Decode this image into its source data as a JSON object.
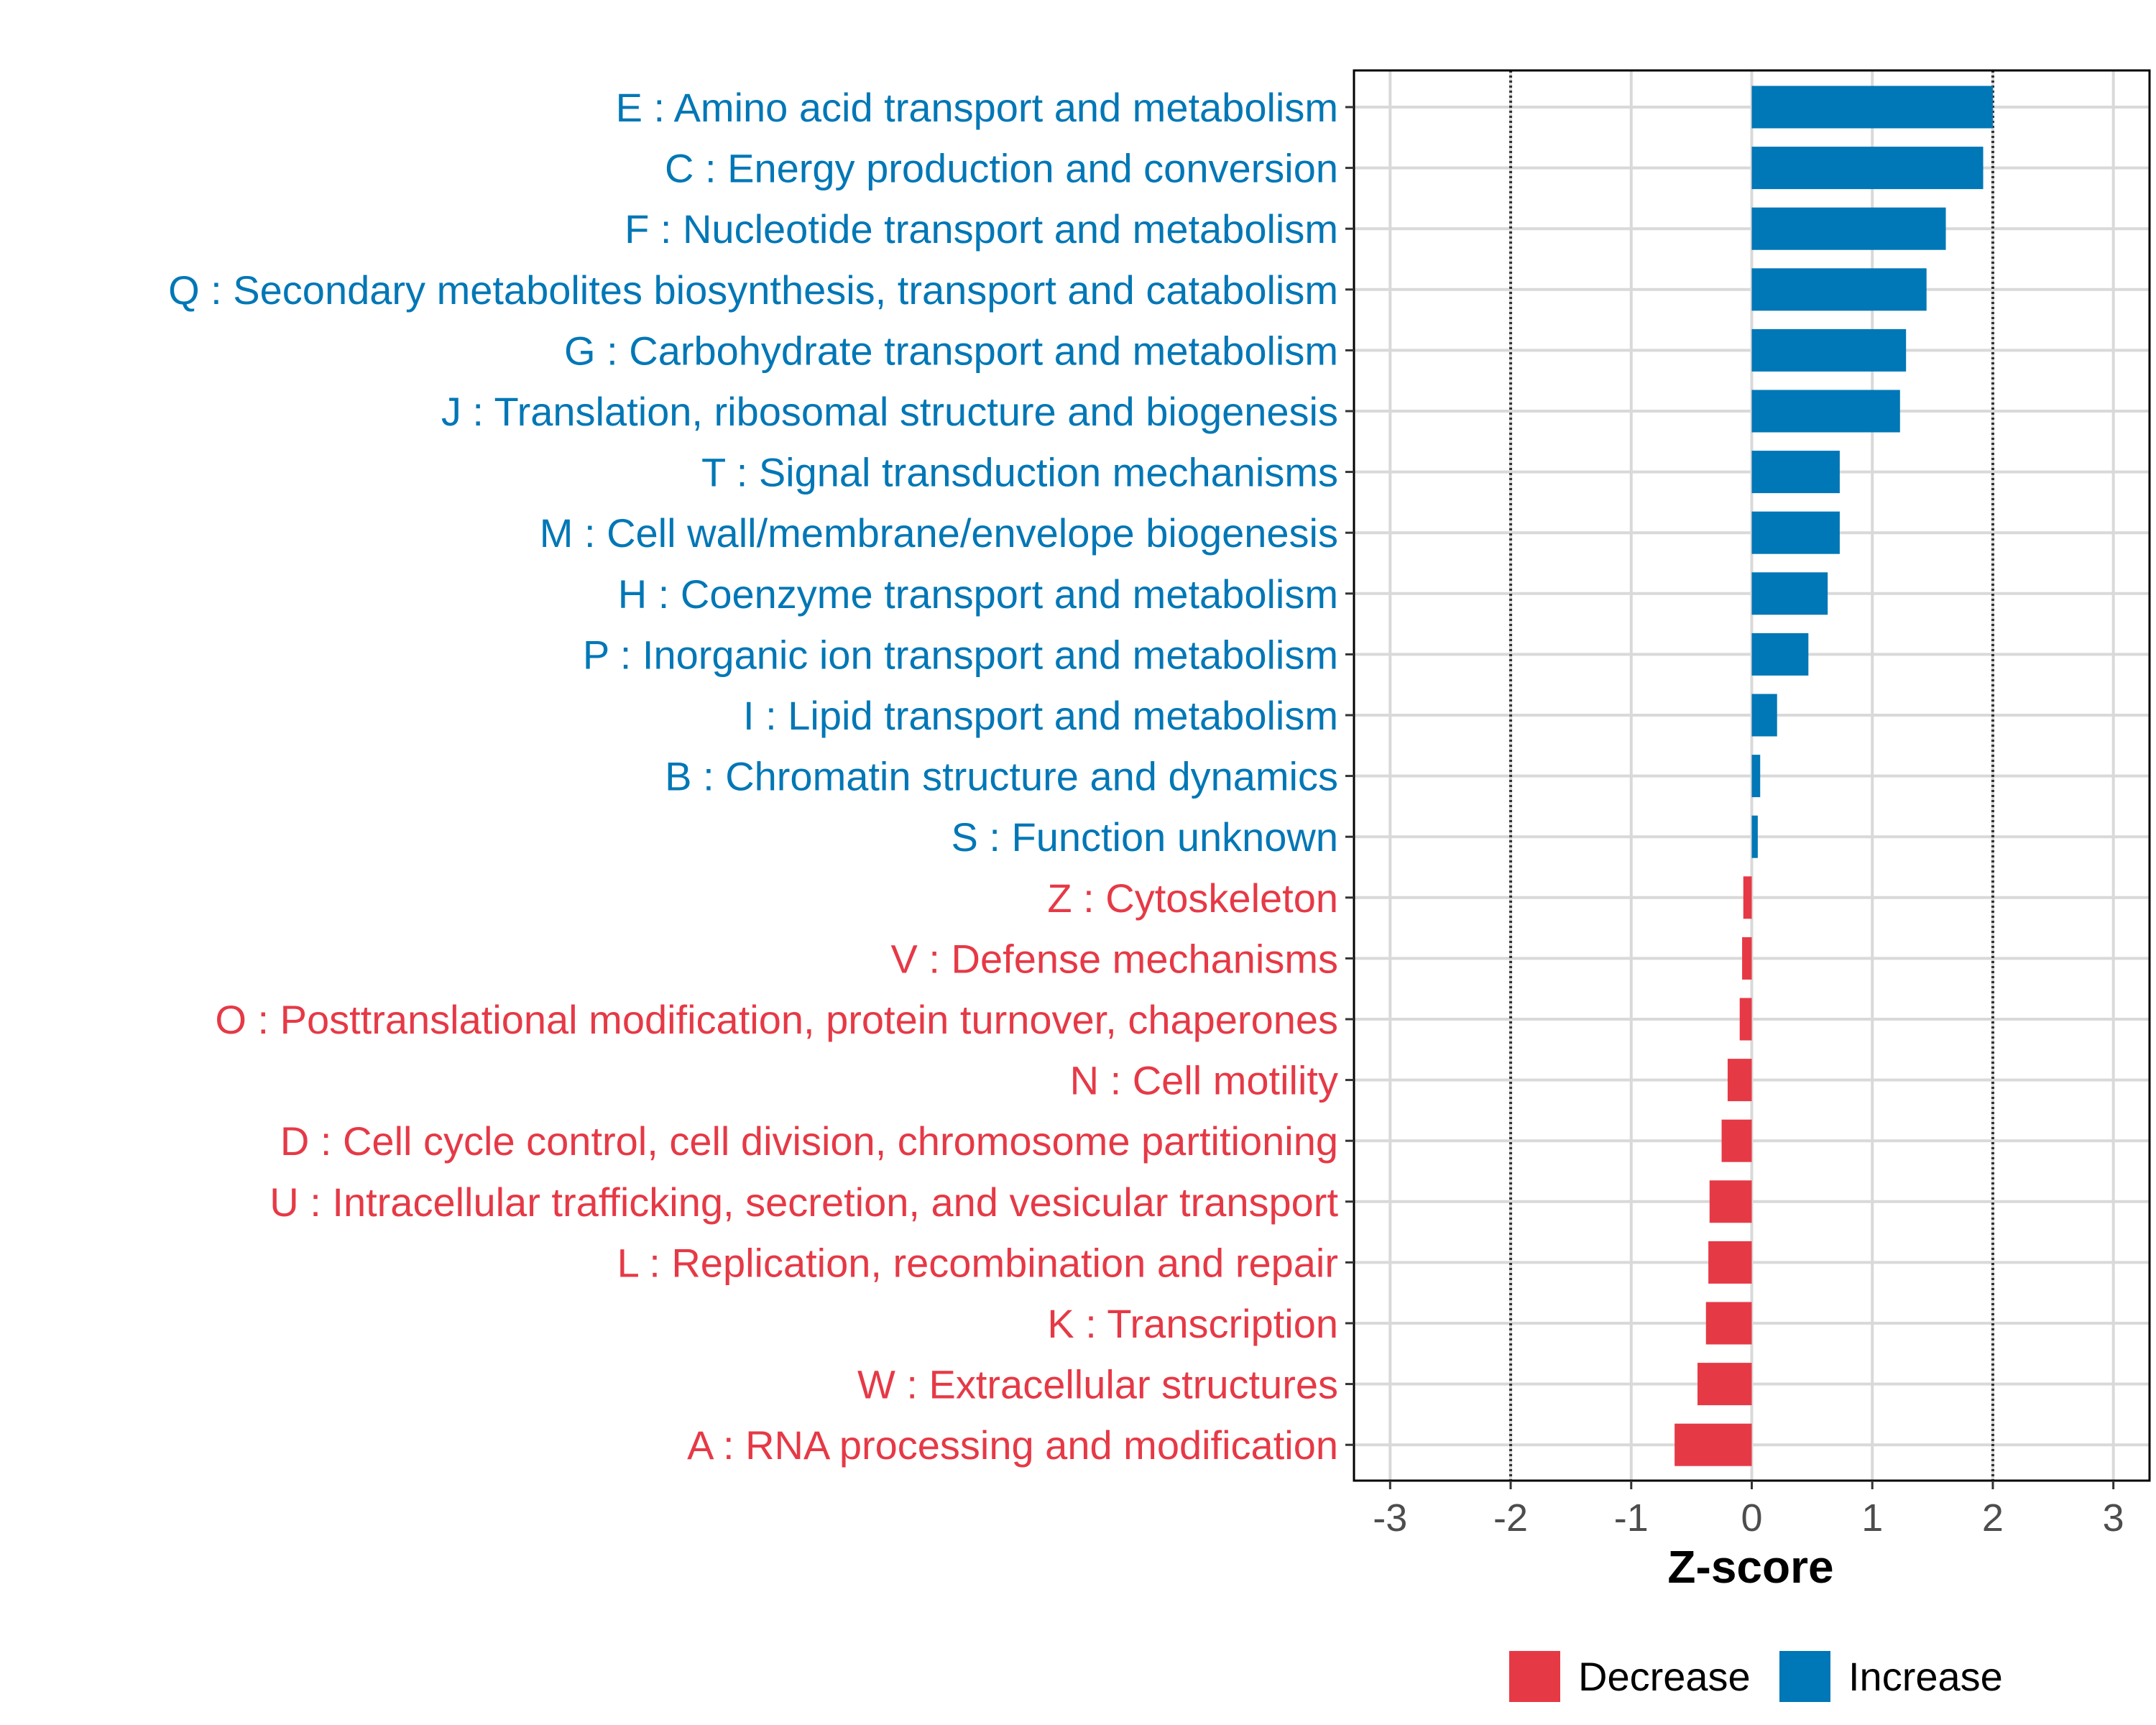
{
  "chart_data": {
    "type": "bar",
    "orientation": "horizontal",
    "xlabel": "Z-score",
    "ylabel": "",
    "xlim": [
      -3.3,
      3.3
    ],
    "x_ticks": [
      -3,
      -2,
      -1,
      0,
      1,
      2,
      3
    ],
    "reference_lines": [
      -2,
      2
    ],
    "grid": true,
    "legend_position": "bottom",
    "legend": [
      {
        "label": "Decrease",
        "color": "#E63946"
      },
      {
        "label": "Increase",
        "color": "#0077B6"
      }
    ],
    "categories": [
      "E : Amino acid transport and metabolism",
      "C : Energy production and conversion",
      "F : Nucleotide transport and metabolism",
      "Q : Secondary metabolites biosynthesis, transport and catabolism",
      "G : Carbohydrate transport and metabolism",
      "J : Translation, ribosomal structure and biogenesis",
      "T : Signal transduction mechanisms",
      "M : Cell wall/membrane/envelope biogenesis",
      "H : Coenzyme transport and metabolism",
      "P : Inorganic ion transport and metabolism",
      "I : Lipid transport and metabolism",
      "B : Chromatin structure and dynamics",
      "S : Function unknown",
      "Z : Cytoskeleton",
      "V : Defense mechanisms",
      "O : Posttranslational modification, protein turnover, chaperones",
      "N : Cell motility",
      "D : Cell cycle control, cell division, chromosome partitioning",
      "U : Intracellular trafficking, secretion, and vesicular transport",
      "L : Replication, recombination and repair",
      "K : Transcription",
      "W : Extracellular structures",
      "A : RNA processing and modification"
    ],
    "values": [
      2.0,
      1.92,
      1.61,
      1.45,
      1.28,
      1.23,
      0.73,
      0.73,
      0.63,
      0.47,
      0.21,
      0.07,
      0.05,
      -0.07,
      -0.08,
      -0.1,
      -0.2,
      -0.25,
      -0.35,
      -0.36,
      -0.38,
      -0.45,
      -0.64
    ],
    "groups": [
      "Increase",
      "Increase",
      "Increase",
      "Increase",
      "Increase",
      "Increase",
      "Increase",
      "Increase",
      "Increase",
      "Increase",
      "Increase",
      "Increase",
      "Increase",
      "Decrease",
      "Decrease",
      "Decrease",
      "Decrease",
      "Decrease",
      "Decrease",
      "Decrease",
      "Decrease",
      "Decrease",
      "Decrease"
    ]
  }
}
